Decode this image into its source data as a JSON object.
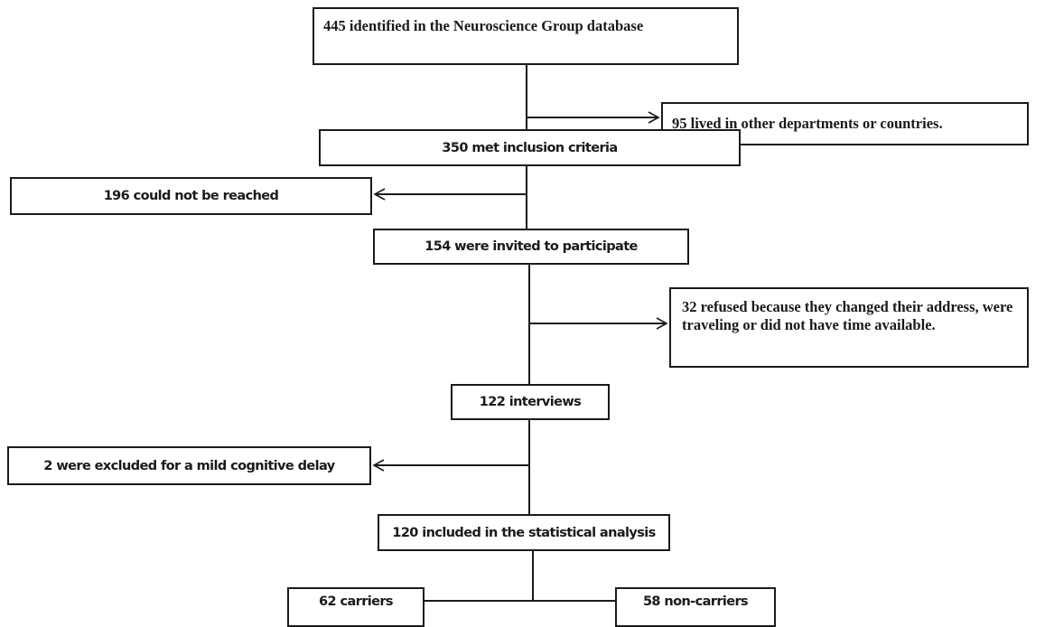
{
  "flowchart": {
    "identified": "445 identified in the Neuroscience Group database",
    "other_departments": "95 lived in other departments or countries.",
    "inclusion": "350 met inclusion criteria",
    "not_reached": "196 could not be reached",
    "invited": "154 were invited to participate",
    "refused": "32 refused because they changed their address, were traveling or did not have time available.",
    "interviews": "122 interviews",
    "excluded": "2 were excluded for a mild cognitive delay",
    "included": "120 included in the statistical analysis",
    "carriers": "62 carriers",
    "non_carriers": "58 non-carriers"
  },
  "colors": {
    "line": "#1a1a1a",
    "background": "#ffffff"
  }
}
